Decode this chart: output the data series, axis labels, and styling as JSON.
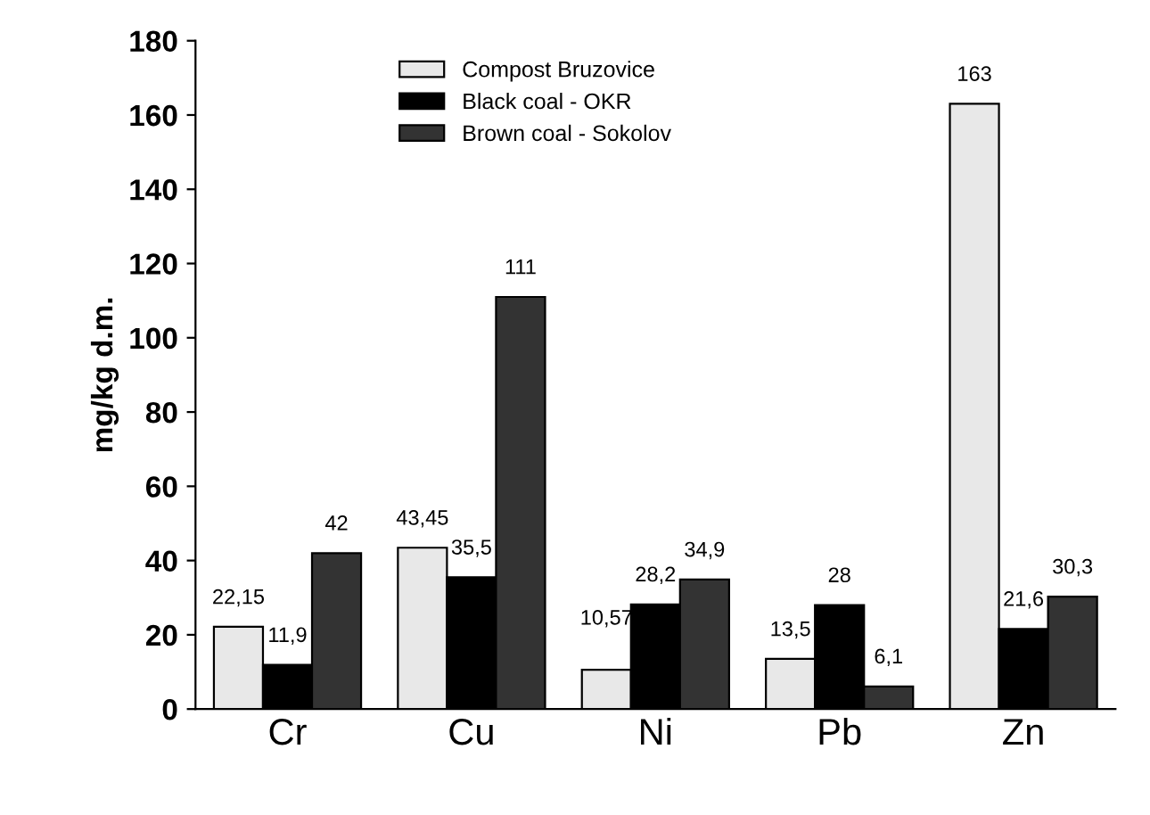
{
  "chart_data": {
    "type": "bar",
    "ylabel": "mg/kg d.m.",
    "categories": [
      "Cr",
      "Cu",
      "Ni",
      "Pb",
      "Zn"
    ],
    "series": [
      {
        "name": "Compost Bruzovice",
        "color": "#e8e8e8",
        "values": [
          22.15,
          43.45,
          10.57,
          13.5,
          163
        ],
        "value_labels": [
          "22,15",
          "43,45",
          "10,57",
          "13,5",
          "163"
        ]
      },
      {
        "name": "Black coal - OKR",
        "color": "#000000",
        "values": [
          11.9,
          35.5,
          28.2,
          28,
          21.6
        ],
        "value_labels": [
          "11,9",
          "35,5",
          "28,2",
          "28",
          "21,6"
        ]
      },
      {
        "name": "Brown coal - Sokolov",
        "color": "#333333",
        "values": [
          42,
          111,
          34.9,
          6.1,
          30.3
        ],
        "value_labels": [
          "42",
          "111",
          "34,9",
          "6,1",
          "30,3"
        ]
      }
    ],
    "ylim": [
      0,
      180
    ],
    "yticks": [
      0,
      20,
      40,
      60,
      80,
      100,
      120,
      140,
      160,
      180
    ],
    "grid": false,
    "legend": "top left"
  }
}
